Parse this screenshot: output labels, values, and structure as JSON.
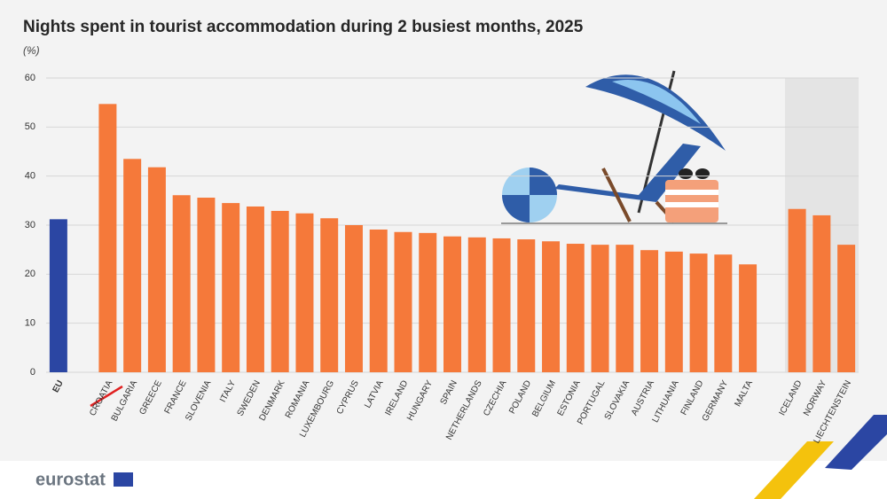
{
  "chart_data": {
    "type": "bar",
    "title": "Nights spent in tourist accommodation during 2 busiest months, 2025",
    "subtitle": "(%)",
    "categories": [
      "EU",
      null,
      "Croatia",
      "Bulgaria",
      "Greece",
      "France",
      "Slovenia",
      "Italy",
      "Sweden",
      "Denmark",
      "Romania",
      "Luxembourg",
      "Cyprus",
      "Latvia",
      "Ireland",
      "Hungary",
      "Spain",
      "Netherlands",
      "Czechia",
      "Poland",
      "Belgium",
      "Estonia",
      "Portugal",
      "Slovakia",
      "Austria",
      "Lithuania",
      "Finland",
      "Germany",
      "Malta",
      null,
      "Iceland",
      "Norway",
      "Liechtenstein"
    ],
    "values": [
      31.2,
      null,
      54.7,
      43.5,
      41.8,
      36.1,
      35.6,
      34.5,
      33.8,
      32.9,
      32.4,
      31.4,
      30.0,
      29.1,
      28.6,
      28.4,
      27.7,
      27.5,
      27.3,
      27.1,
      26.7,
      26.2,
      26.0,
      26.0,
      24.9,
      24.6,
      24.2,
      24.0,
      22.0,
      null,
      33.3,
      32.0,
      26.0
    ],
    "colors": [
      "#2b46a3",
      null,
      "#f5793a",
      "#f5793a",
      "#f5793a",
      "#f5793a",
      "#f5793a",
      "#f5793a",
      "#f5793a",
      "#f5793a",
      "#f5793a",
      "#f5793a",
      "#f5793a",
      "#f5793a",
      "#f5793a",
      "#f5793a",
      "#f5793a",
      "#f5793a",
      "#f5793a",
      "#f5793a",
      "#f5793a",
      "#f5793a",
      "#f5793a",
      "#f5793a",
      "#f5793a",
      "#f5793a",
      "#f5793a",
      "#f5793a",
      "#f5793a",
      null,
      "#f5793a",
      "#f5793a",
      "#f5793a"
    ],
    "ylim": [
      0,
      60
    ],
    "yticks": [
      0,
      10,
      20,
      30,
      40,
      50,
      60
    ],
    "grid": true
  },
  "footer": {
    "logo": "eurostat"
  }
}
